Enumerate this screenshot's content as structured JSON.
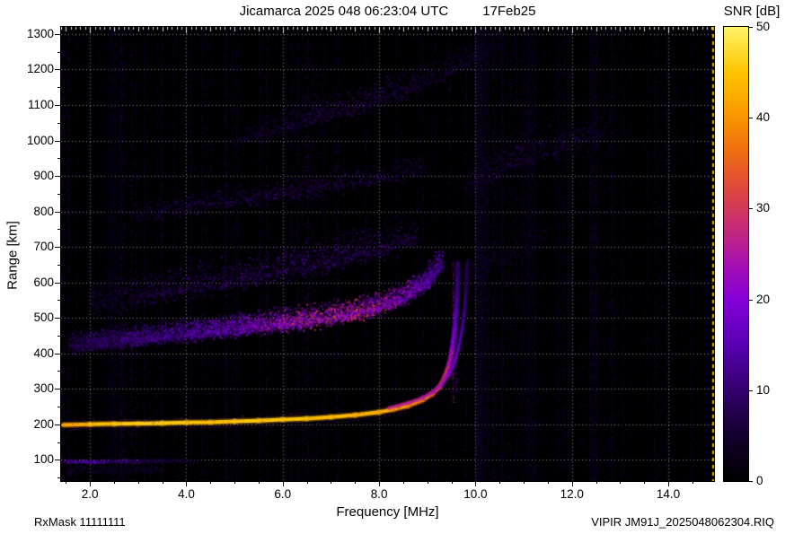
{
  "header": {
    "title": "Jicamarca 2025 048 06:23:04 UTC",
    "date": "17Feb25",
    "colorbar_title": "SNR [dB]"
  },
  "footer": {
    "rxmask": "RxMask 11111111",
    "file": "VIPIR  JM91J_2025048062304.RIQ"
  },
  "chart_data": {
    "type": "heatmap",
    "subtype": "ionogram",
    "title": "Jicamarca 2025 048 06:23:04 UTC 17Feb25",
    "xlabel": "Frequency [MHz]",
    "ylabel": "Range [km]",
    "xlim": [
      1.4,
      14.95
    ],
    "ylim": [
      40,
      1320
    ],
    "xticks": [
      2,
      4,
      6,
      8,
      10,
      12,
      14
    ],
    "xtick_labels": [
      "2.0",
      "4.0",
      "6.0",
      "8.0",
      "10.0",
      "12.0",
      "14.0"
    ],
    "xminor_step": 0.5,
    "yticks": [
      100,
      200,
      300,
      400,
      500,
      600,
      700,
      800,
      900,
      1000,
      1100,
      1200,
      1300
    ],
    "ytick_labels": [
      "100",
      "200",
      "300",
      "400",
      "500",
      "600",
      "700",
      "800",
      "900",
      "1000",
      "1100",
      "1200",
      "1300"
    ],
    "yminor_step": 50,
    "grid": true,
    "colorbar": {
      "label": "SNR [dB]",
      "min": 0,
      "max": 50,
      "ticks": [
        0,
        10,
        20,
        30,
        40,
        50
      ],
      "tick_labels": [
        "0",
        "10",
        "20",
        "30",
        "40",
        "50"
      ]
    },
    "colormap": [
      [
        0.0,
        "#000000"
      ],
      [
        0.1,
        "#14002e"
      ],
      [
        0.2,
        "#34006e"
      ],
      [
        0.3,
        "#5a00b4"
      ],
      [
        0.4,
        "#8400d8"
      ],
      [
        0.48,
        "#a811b0"
      ],
      [
        0.56,
        "#c62b77"
      ],
      [
        0.64,
        "#dd4740"
      ],
      [
        0.72,
        "#ee6a14"
      ],
      [
        0.8,
        "#f89500"
      ],
      [
        0.9,
        "#ffc400"
      ],
      [
        1.0,
        "#fff468"
      ]
    ],
    "traces": [
      {
        "name": "F-layer O-mode echo",
        "width": 4,
        "points": [
          [
            1.45,
            198,
            38
          ],
          [
            2.0,
            200,
            46
          ],
          [
            2.5,
            201,
            44
          ],
          [
            3.0,
            202,
            47
          ],
          [
            3.5,
            203,
            45
          ],
          [
            4.0,
            205,
            46
          ],
          [
            4.5,
            206,
            44
          ],
          [
            5.0,
            208,
            46
          ],
          [
            5.5,
            210,
            45
          ],
          [
            6.0,
            213,
            46
          ],
          [
            6.5,
            216,
            44
          ],
          [
            7.0,
            220,
            45
          ],
          [
            7.5,
            226,
            43
          ],
          [
            8.0,
            234,
            44
          ],
          [
            8.3,
            242,
            42
          ],
          [
            8.6,
            252,
            40
          ],
          [
            8.9,
            268,
            38
          ],
          [
            9.1,
            285,
            36
          ],
          [
            9.25,
            305,
            33
          ],
          [
            9.35,
            330,
            30
          ],
          [
            9.45,
            368,
            26
          ],
          [
            9.52,
            415,
            22
          ],
          [
            9.57,
            468,
            18
          ],
          [
            9.6,
            520,
            15
          ],
          [
            9.62,
            570,
            12
          ],
          [
            9.63,
            620,
            10
          ],
          [
            9.64,
            655,
            8
          ]
        ]
      },
      {
        "name": "F-layer X-mode echo",
        "width": 2.5,
        "points": [
          [
            8.2,
            246,
            26
          ],
          [
            8.6,
            260,
            28
          ],
          [
            8.9,
            275,
            26
          ],
          [
            9.1,
            290,
            25
          ],
          [
            9.3,
            312,
            23
          ],
          [
            9.45,
            340,
            21
          ],
          [
            9.55,
            372,
            19
          ],
          [
            9.65,
            415,
            16
          ],
          [
            9.72,
            465,
            14
          ],
          [
            9.77,
            520,
            12
          ],
          [
            9.8,
            575,
            10
          ],
          [
            9.82,
            630,
            8
          ],
          [
            9.83,
            660,
            7
          ]
        ]
      }
    ],
    "bands": [
      {
        "name": "second-hop-spread",
        "hw": 55,
        "density": 1.0,
        "points": [
          [
            1.6,
            425,
            9
          ],
          [
            2.5,
            437,
            11
          ],
          [
            3.5,
            452,
            13
          ],
          [
            4.5,
            465,
            16
          ],
          [
            5.5,
            480,
            20
          ],
          [
            6.2,
            492,
            24
          ],
          [
            6.8,
            502,
            26
          ],
          [
            7.4,
            514,
            26
          ],
          [
            8.0,
            534,
            24
          ],
          [
            8.5,
            560,
            21
          ],
          [
            9.0,
            607,
            16
          ],
          [
            9.3,
            662,
            12
          ]
        ]
      },
      {
        "name": "upper-diffuse-spread",
        "hw": 85,
        "density": 0.25,
        "points": [
          [
            2.0,
            545,
            7
          ],
          [
            3.5,
            580,
            9
          ],
          [
            5.0,
            615,
            10
          ],
          [
            6.0,
            640,
            11
          ],
          [
            7.0,
            668,
            11
          ],
          [
            8.0,
            702,
            10
          ],
          [
            8.8,
            732,
            8
          ]
        ]
      },
      {
        "name": "multiple-850km",
        "hw": 55,
        "density": 0.22,
        "points": [
          [
            2.8,
            792,
            6
          ],
          [
            4.0,
            816,
            8
          ],
          [
            5.5,
            843,
            9
          ],
          [
            7.0,
            873,
            9
          ],
          [
            8.0,
            898,
            8
          ],
          [
            9.0,
            928,
            7
          ]
        ]
      },
      {
        "name": "multiple-1100km",
        "hw": 65,
        "density": 0.22,
        "points": [
          [
            5.0,
            1005,
            6
          ],
          [
            6.5,
            1062,
            8
          ],
          [
            7.5,
            1102,
            9
          ],
          [
            8.5,
            1148,
            8
          ],
          [
            9.3,
            1192,
            7
          ],
          [
            10.0,
            1240,
            6
          ],
          [
            10.6,
            1285,
            5
          ]
        ]
      },
      {
        "name": "patches-upper-right",
        "hw": 85,
        "density": 0.18,
        "points": [
          [
            9.8,
            880,
            6
          ],
          [
            10.5,
            930,
            8
          ],
          [
            11.2,
            968,
            8
          ],
          [
            12.0,
            1000,
            7
          ],
          [
            12.7,
            1022,
            5
          ]
        ]
      },
      {
        "name": "patches-right",
        "hw": 60,
        "density": 0.15,
        "points": [
          [
            9.7,
            615,
            5
          ],
          [
            10.3,
            658,
            6
          ],
          [
            10.9,
            700,
            5
          ],
          [
            11.5,
            740,
            4
          ]
        ]
      },
      {
        "name": "e-region-echo",
        "hw": 9,
        "density": 2.2,
        "points": [
          [
            1.45,
            96,
            13
          ],
          [
            2.0,
            95,
            14
          ],
          [
            2.6,
            96,
            11
          ],
          [
            3.2,
            97,
            7
          ],
          [
            4.2,
            98,
            4
          ]
        ]
      },
      {
        "name": "ground-clutter",
        "hw": 25,
        "density": 0.4,
        "points": [
          [
            1.5,
            70,
            6
          ],
          [
            2.5,
            72,
            6
          ],
          [
            3.5,
            75,
            5
          ]
        ]
      }
    ],
    "rfi_lines": [
      {
        "f": 2.45,
        "r0": 40,
        "r1": 1320,
        "snr": 5,
        "w": 10
      },
      {
        "f": 2.62,
        "r0": 40,
        "r1": 1320,
        "snr": 7,
        "w": 2
      },
      {
        "f": 3.12,
        "r0": 40,
        "r1": 1320,
        "snr": 6,
        "w": 2
      },
      {
        "f": 3.75,
        "r0": 40,
        "r1": 1320,
        "snr": 5,
        "w": 3
      },
      {
        "f": 4.32,
        "r0": 40,
        "r1": 1320,
        "snr": 6,
        "w": 2
      },
      {
        "f": 5.05,
        "r0": 40,
        "r1": 1320,
        "snr": 6,
        "w": 3
      },
      {
        "f": 5.52,
        "r0": 40,
        "r1": 1320,
        "snr": 7,
        "w": 2
      },
      {
        "f": 6.3,
        "r0": 40,
        "r1": 1320,
        "snr": 7,
        "w": 2
      },
      {
        "f": 6.85,
        "r0": 40,
        "r1": 1320,
        "snr": 5,
        "w": 3
      },
      {
        "f": 7.72,
        "r0": 40,
        "r1": 1320,
        "snr": 6,
        "w": 2
      },
      {
        "f": 8.35,
        "r0": 40,
        "r1": 1320,
        "snr": 5,
        "w": 2
      },
      {
        "f": 8.9,
        "r0": 40,
        "r1": 1320,
        "snr": 6,
        "w": 2
      },
      {
        "f": 9.53,
        "r0": 260,
        "r1": 660,
        "snr": 26,
        "w": 2
      },
      {
        "f": 9.6,
        "r0": 290,
        "r1": 660,
        "snr": 20,
        "w": 2
      },
      {
        "f": 10.02,
        "r0": 40,
        "r1": 1320,
        "snr": 9,
        "w": 3
      },
      {
        "f": 10.15,
        "r0": 40,
        "r1": 1320,
        "snr": 6,
        "w": 14
      },
      {
        "f": 10.55,
        "r0": 40,
        "r1": 1320,
        "snr": 6,
        "w": 3
      },
      {
        "f": 11.15,
        "r0": 40,
        "r1": 1320,
        "snr": 6,
        "w": 12
      },
      {
        "f": 11.7,
        "r0": 40,
        "r1": 1320,
        "snr": 5,
        "w": 3
      },
      {
        "f": 12.42,
        "r0": 40,
        "r1": 1320,
        "snr": 6,
        "w": 8
      },
      {
        "f": 13.05,
        "r0": 40,
        "r1": 1320,
        "snr": 5,
        "w": 3
      },
      {
        "f": 13.55,
        "r0": 40,
        "r1": 1320,
        "snr": 5,
        "w": 2
      },
      {
        "f": 13.95,
        "r0": 40,
        "r1": 1320,
        "snr": 6,
        "w": 3
      },
      {
        "f": 14.45,
        "r0": 40,
        "r1": 1320,
        "snr": 5,
        "w": 2
      },
      {
        "f": 14.93,
        "r0": 40,
        "r1": 1320,
        "snr": 42,
        "w": 2,
        "dashed": true
      }
    ],
    "noise": {
      "seed": 1337,
      "speckle_count": 22000,
      "speckle_snr": [
        1,
        8
      ],
      "column_count": 130,
      "column_snr": [
        2,
        9
      ]
    }
  }
}
